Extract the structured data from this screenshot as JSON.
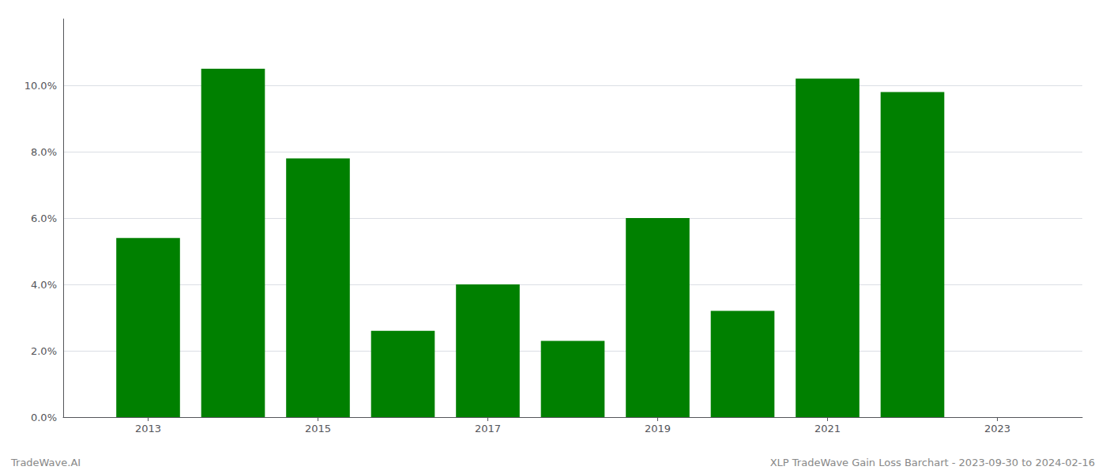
{
  "chart_data": {
    "type": "bar",
    "x": [
      2013,
      2014,
      2015,
      2016,
      2017,
      2018,
      2019,
      2020,
      2021,
      2022
    ],
    "values": [
      0.054,
      0.105,
      0.078,
      0.026,
      0.04,
      0.023,
      0.06,
      0.032,
      0.102,
      0.098
    ],
    "color": "#008000",
    "xlim": [
      2012.0,
      2024.0
    ],
    "xticks": [
      2013,
      2015,
      2017,
      2019,
      2021,
      2023
    ],
    "ylim": [
      0,
      0.12
    ],
    "yticks": [
      {
        "value": 0.0,
        "label": "0.0%"
      },
      {
        "value": 0.02,
        "label": "2.0%"
      },
      {
        "value": 0.04,
        "label": "4.0%"
      },
      {
        "value": 0.06,
        "label": "6.0%"
      },
      {
        "value": 0.08,
        "label": "8.0%"
      },
      {
        "value": 0.1,
        "label": "10.0%"
      }
    ],
    "grid": true,
    "annotations": [
      "TradeWave.AI",
      "XLP TradeWave Gain Loss Barchart - 2023-09-30 to 2024-02-16"
    ]
  }
}
